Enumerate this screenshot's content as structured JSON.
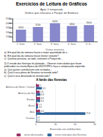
{
  "chart_data": [
    {
      "type": "bar",
      "title": "Exercícios de Leitura de Gráficos",
      "subtitle": [
        "Após 1 temporada",
        "Gráfico que relaciona o Parque de Botânico"
      ],
      "categories": [
        "1ª Sem.",
        "2ª Sem.",
        "3ª Sem.",
        "4ª Sem.",
        "5ª S..."
      ],
      "values": [
        2600,
        3200,
        4000,
        3400,
        3600
      ],
      "color": "#8888cc",
      "xlabel": "Datas mensais",
      "ylim": [
        0,
        5000
      ],
      "yticks": [
        1000,
        2000,
        3000,
        4000,
        5000
      ],
      "grid": true,
      "data_labels": true,
      "annotations": [
        "a)  Em qual dia da semana houve a maior quantidade de v...",
        "b)  Em qual dia da semana houve menor visitante?",
        "c)  Quantas pessoas, ao todo, visitaram o Parque de...",
        "2) O estudo das florestas foi plantado... Observe estes dados que foram",
        "publicados na revista Época de 09/07/1999 e faça a comparação requerida.",
        "a)  Que países contribuíram com os dados...",
        "b)  Qual é arca plena de florestas no mundo todo?",
        "c)  Qual é arca devastada no mundo todo?"
      ]
    },
    {
      "type": "bar",
      "orientation": "horizontal",
      "title": "A fardo das florestas",
      "categories": [
        "Oceania",
        "Ásia",
        "Brasil",
        "Europa",
        "América do Sul",
        "América do Norte / Central"
      ],
      "series": [
        {
          "name": "áreas devastadas",
          "color": "#993366",
          "values": [
            0.2,
            6.3,
            3.3,
            6.6,
            5.9,
            5.0
          ]
        },
        {
          "name": "áreas intocadas das florestas",
          "color": "#336699",
          "values": [
            0.2,
            75.8,
            3.3,
            6.4,
            6.9,
            9.2
          ]
        }
      ],
      "xlabel": "Extensão em milhões/km",
      "xlim": [
        0,
        90
      ],
      "xticks": [
        0,
        30,
        60,
        90
      ],
      "grid": true,
      "data_labels": true,
      "legend": "bottom"
    }
  ]
}
